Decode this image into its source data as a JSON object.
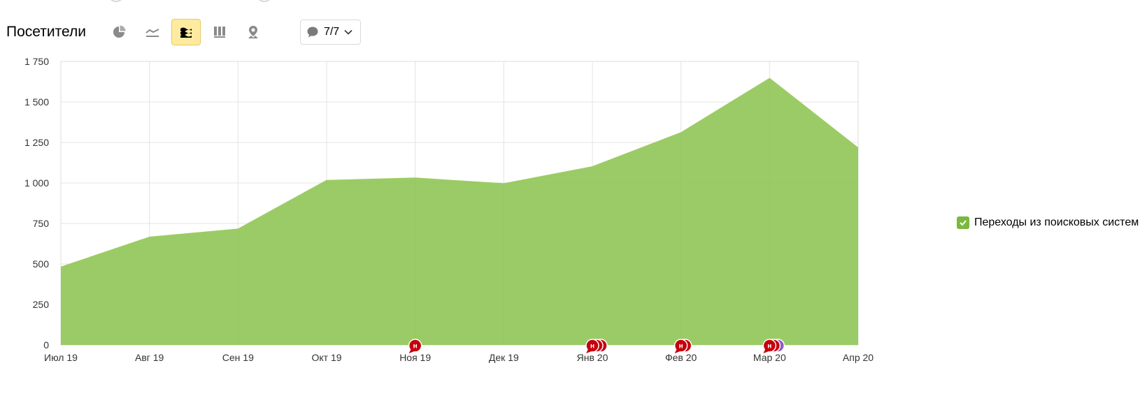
{
  "header": {
    "title": "Посетители",
    "tools": [
      {
        "name": "pie-chart-icon",
        "active": false
      },
      {
        "name": "line-chart-icon",
        "active": false
      },
      {
        "name": "area-chart-icon",
        "active": true
      },
      {
        "name": "bar-chart-icon",
        "active": false
      },
      {
        "name": "map-icon",
        "active": false
      }
    ],
    "notes": {
      "label": "7/7"
    }
  },
  "colors": {
    "area": "#8dc452",
    "area_top": "#9ccc62",
    "legend_check": "#7bb83f",
    "marker_red": "#c5000d",
    "marker_purple": "#8d5fc9",
    "grid": "#e4e4e4"
  },
  "legend": {
    "label": "Переходы из поисковых систем"
  },
  "chart_data": {
    "type": "area",
    "title": "",
    "xlabel": "",
    "ylabel": "",
    "categories": [
      "Июл 19",
      "Авг 19",
      "Сен 19",
      "Окт 19",
      "Ноя 19",
      "Дек 19",
      "Янв 20",
      "Фев 20",
      "Мар 20",
      "Апр 20"
    ],
    "ylim": [
      0,
      1750
    ],
    "yticks": [
      0,
      250,
      500,
      750,
      1000,
      1250,
      1500,
      1750
    ],
    "ytick_labels": [
      "0",
      "250",
      "500",
      "750",
      "1 000",
      "1 250",
      "1 500",
      "1 750"
    ],
    "grid": true,
    "legend_position": "right",
    "series": [
      {
        "name": "Переходы из поисковых систем",
        "values": [
          480,
          665,
          715,
          1015,
          1030,
          995,
          1100,
          1310,
          1645,
          1215
        ]
      }
    ],
    "annotations": [
      {
        "x": "Ноя 19",
        "markers": [
          "red"
        ],
        "label": "н"
      },
      {
        "x": "Янв 20",
        "markers": [
          "red",
          "red",
          "red"
        ],
        "label": "н"
      },
      {
        "x": "Фев 20",
        "markers": [
          "red",
          "red"
        ],
        "label": "н"
      },
      {
        "x": "Мар 20",
        "markers": [
          "red",
          "red",
          "purple"
        ],
        "label": "н"
      }
    ]
  }
}
